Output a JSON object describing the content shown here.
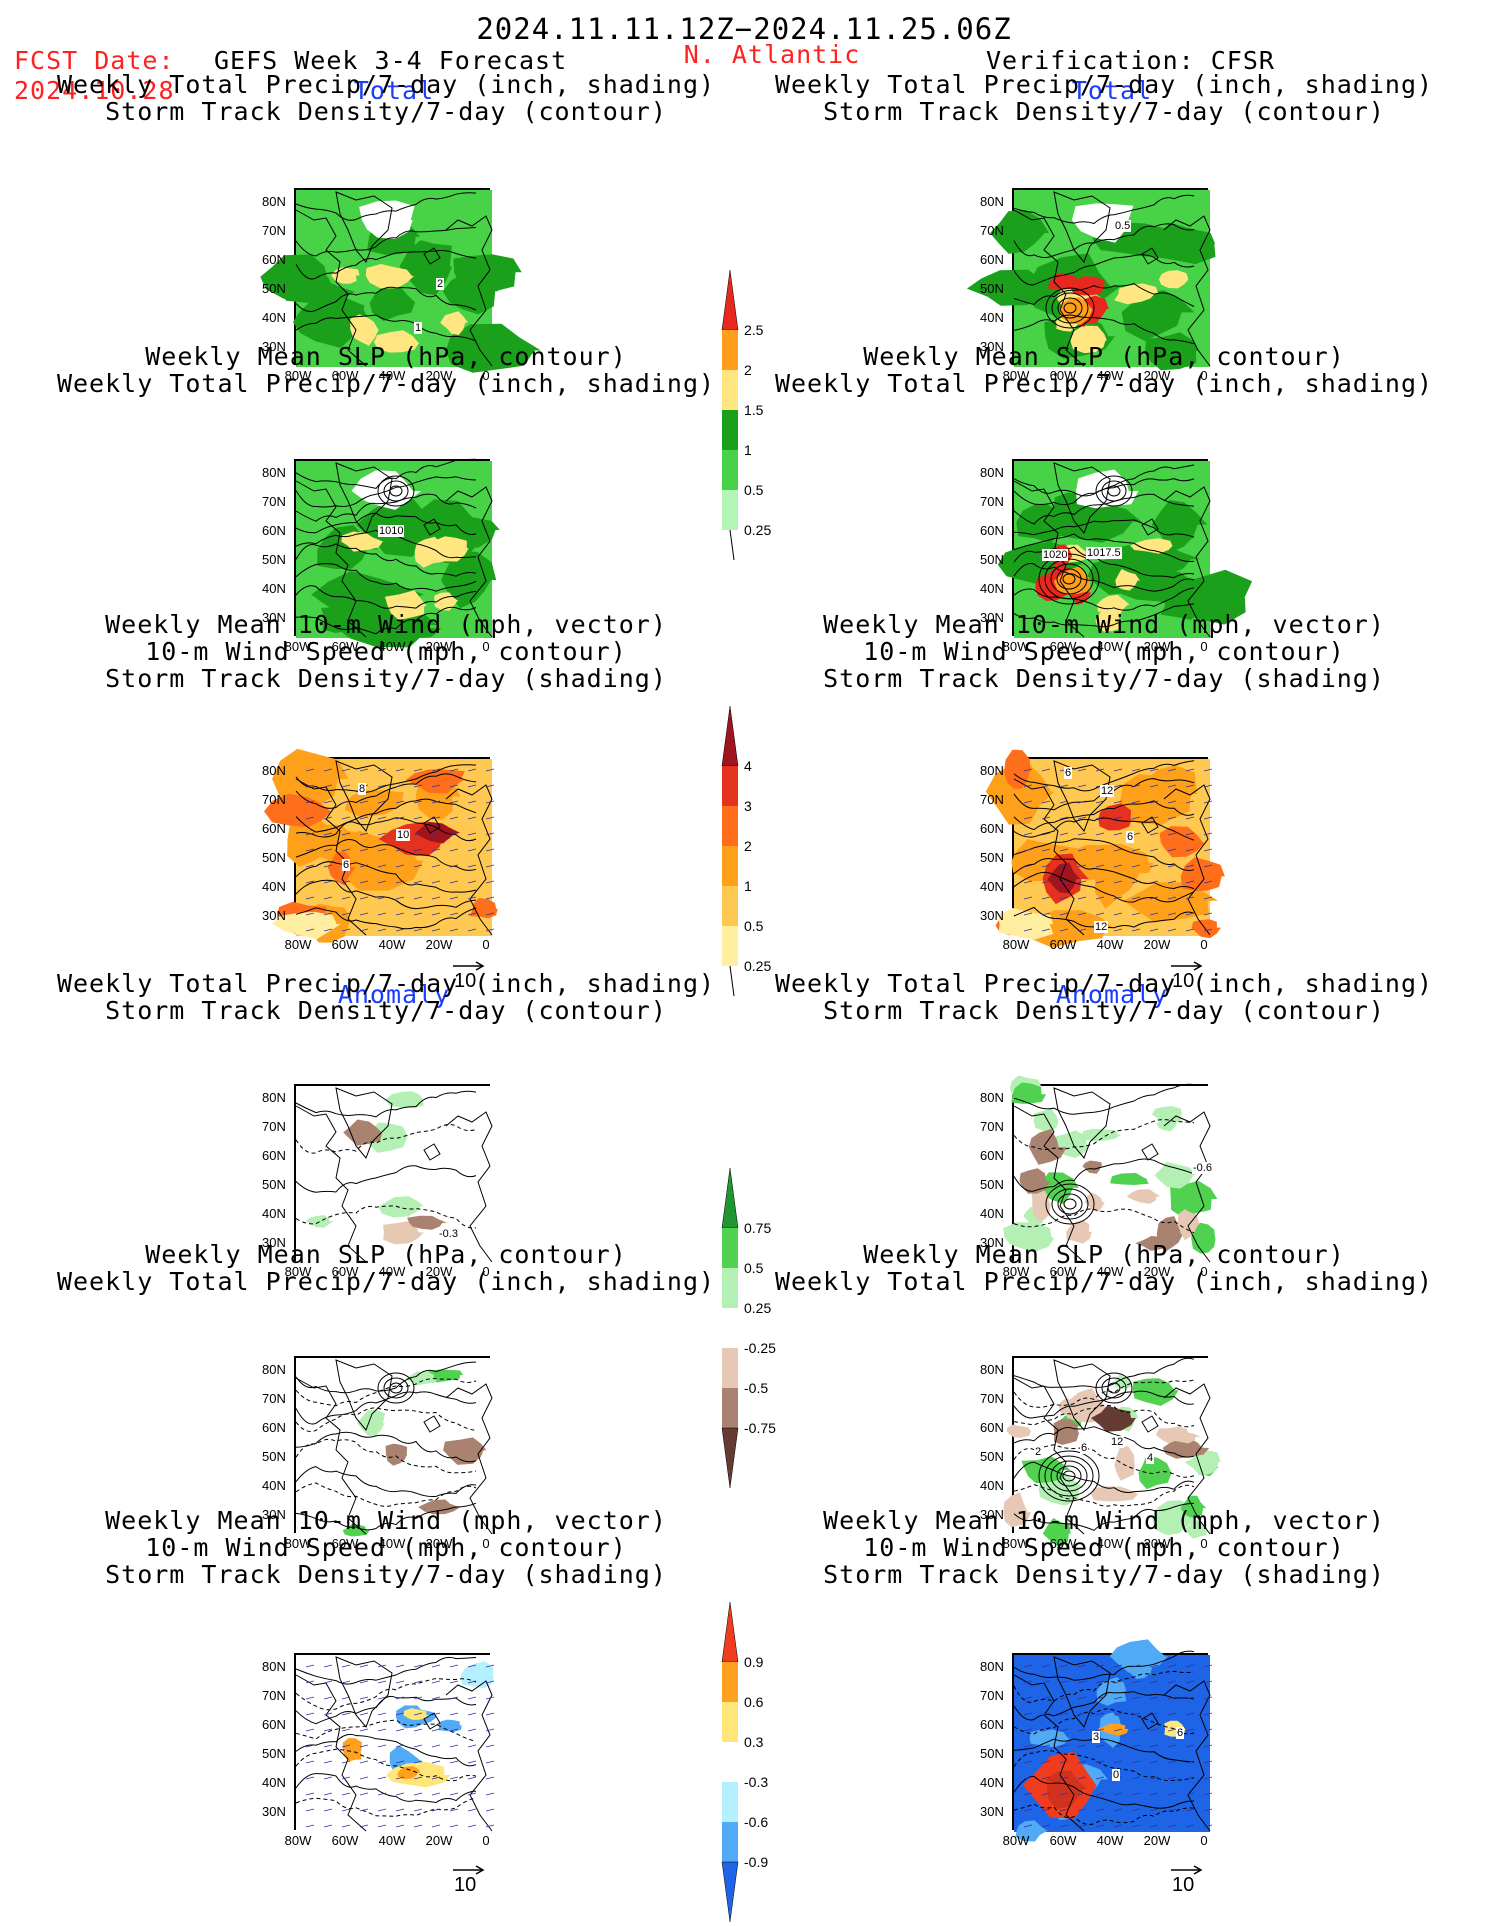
{
  "header": {
    "period": "2024.11.11.12Z−2024.11.25.06Z",
    "fcst_label": "FCST Date:",
    "fcst_date": "2024.10.28",
    "forecast_name": "GEFS Week 3-4 Forecast",
    "region": "N. Atlantic",
    "verification": "Verification: CFSR"
  },
  "sections": {
    "total": "Total",
    "anomaly": "Anomaly"
  },
  "panel_titles": {
    "precip_storm": [
      "Weekly Total Precip/7-day (inch, shading)",
      "Storm Track Density/7-day (contour)"
    ],
    "slp_precip": [
      "Weekly Mean SLP (hPa, contour)",
      "Weekly Total Precip/7-day (inch, shading)"
    ],
    "wind_storm": [
      "Weekly Mean 10-m Wind (mph, vector)",
      "10-m Wind Speed (mph, contour)",
      "Storm Track Density/7-day (shading)"
    ]
  },
  "axes": {
    "lat_ticks": [
      "80N",
      "70N",
      "60N",
      "50N",
      "40N",
      "30N"
    ],
    "lon_ticks": [
      "80W",
      "60W",
      "40W",
      "20W",
      "0"
    ]
  },
  "vector_ref": "10",
  "contour_labels": {
    "fc_total_precip": [
      "2",
      "1"
    ],
    "obs_total_precip": [
      "0.5"
    ],
    "fc_total_slp": [
      "1010"
    ],
    "obs_total_slp": [
      "1020",
      "1017.5"
    ],
    "fc_total_wind": [
      "8",
      "10",
      "6"
    ],
    "obs_total_wind": [
      "6",
      "12",
      "6",
      "12"
    ],
    "fc_anom_precip": [
      "-0.3"
    ],
    "obs_anom_precip": [
      "-0.6"
    ],
    "obs_anom_slp": [
      "2",
      "6",
      "12",
      "4"
    ],
    "obs_anom_wind": [
      "3",
      "6",
      "0"
    ]
  },
  "colorbars": {
    "total_precip": {
      "labels": [
        "2.5",
        "2",
        "1.5",
        "1",
        "0.5",
        "0.25"
      ],
      "colors": [
        "#e8281e",
        "#ff9e1a",
        "#ffe680",
        "#1aa01a",
        "#48d248",
        "#b4f5b4"
      ]
    },
    "total_storm": {
      "labels": [
        "4",
        "3",
        "2",
        "1",
        "0.5",
        "0.25"
      ],
      "colors": [
        "#a0141e",
        "#e4321e",
        "#ff6e1a",
        "#ffa01a",
        "#ffc850",
        "#ffeea0"
      ]
    },
    "anom_precip": {
      "labels": [
        "0.75",
        "0.5",
        "0.25",
        "-0.25",
        "-0.5",
        "-0.75"
      ],
      "colors": [
        "#1e9632",
        "#50d250",
        "#b4f0b4",
        "#ffffff",
        "#e6c8b4",
        "#aa8270",
        "#643c32"
      ]
    },
    "anom_storm": {
      "labels": [
        "0.9",
        "0.6",
        "0.3",
        "-0.3",
        "-0.6",
        "-0.9"
      ],
      "colors": [
        "#f03c1e",
        "#ffa01e",
        "#ffe678",
        "#ffffff",
        "#b4f0ff",
        "#50aaf5",
        "#1e64e6"
      ]
    }
  },
  "colors": {
    "header_red": "#ff2020",
    "section_blue": "#1a3cff"
  }
}
